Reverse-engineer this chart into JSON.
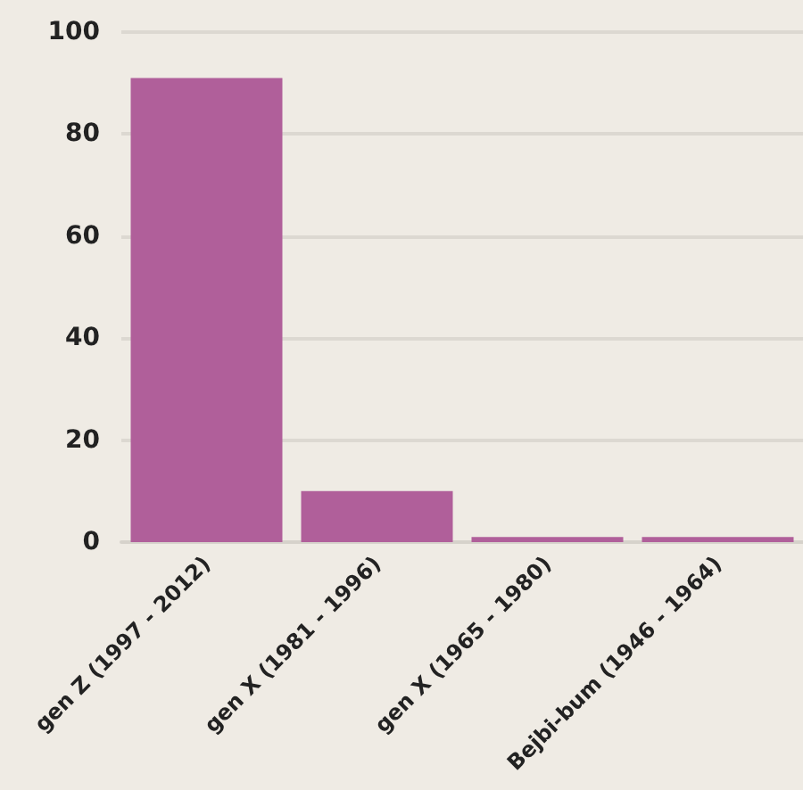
{
  "chart_data": {
    "type": "bar",
    "categories": [
      "gen Z (1997 - 2012)",
      "gen X (1981 - 1996)",
      "gen X (1965 - 1980)",
      "Bejbi-bum (1946 - 1964)"
    ],
    "values": [
      91,
      10,
      1,
      1
    ],
    "color": "#b05f9a",
    "ylim": [
      0,
      100
    ],
    "yticks": [
      0,
      20,
      40,
      60,
      80,
      100
    ],
    "grid": "y"
  }
}
